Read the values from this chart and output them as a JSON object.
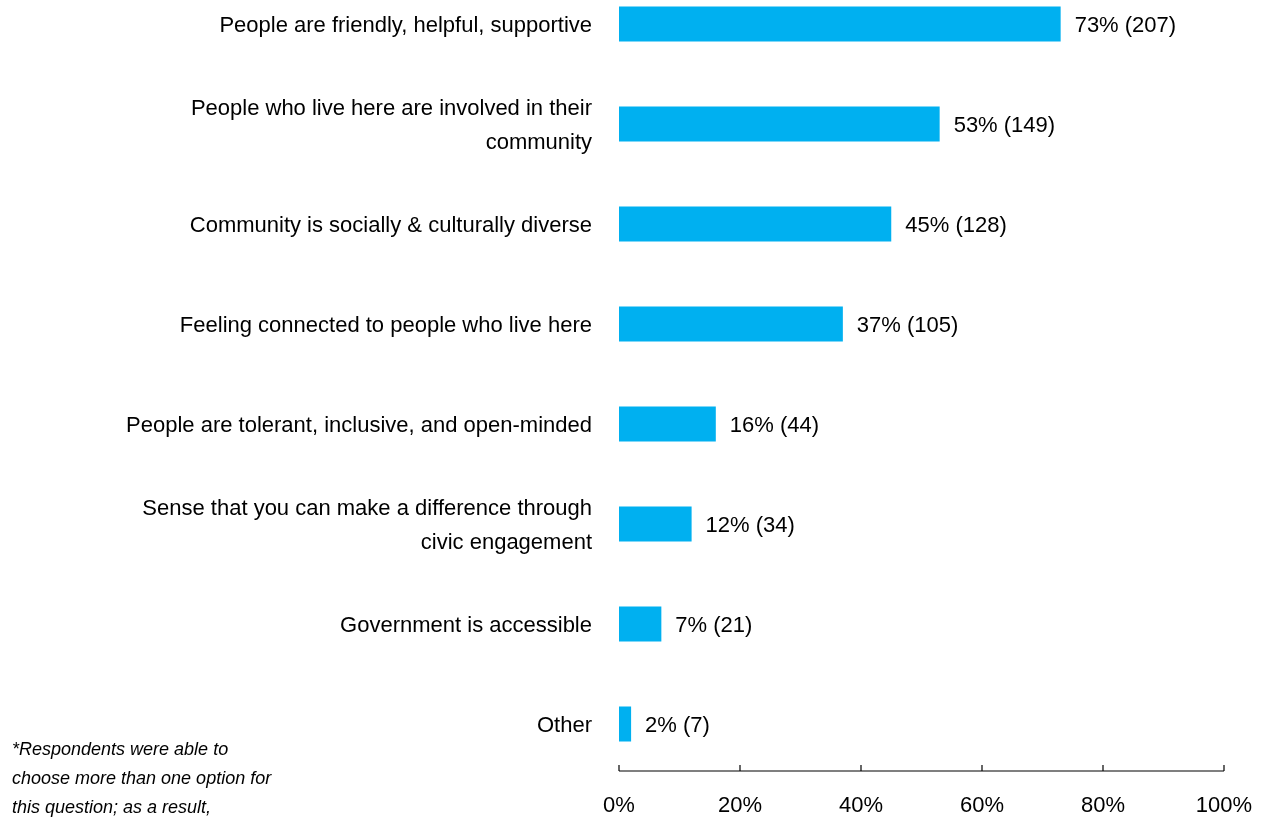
{
  "chart_data": {
    "type": "bar",
    "orientation": "horizontal",
    "categories": [
      "People are friendly, helpful, supportive",
      "People who live here are involved in their community",
      "Community is socially & culturally diverse",
      "Feeling connected to people who live here",
      "People are tolerant, inclusive, and open-minded",
      "Sense that you can make a difference through civic engagement",
      "Government is accessible",
      "Other"
    ],
    "values": [
      73,
      53,
      45,
      37,
      16,
      12,
      7,
      2
    ],
    "value_labels": [
      "73% (207)",
      "53% (149)",
      "45% (128)",
      "37% (105)",
      "16% (44)",
      "12% (34)",
      "7% (21)",
      "2% (7)"
    ],
    "color": "#00b0f0",
    "xlim": [
      0,
      100
    ],
    "xticks": [
      {
        "value": 0,
        "label": "0%"
      },
      {
        "value": 20,
        "label": "20%"
      },
      {
        "value": 40,
        "label": "40%"
      },
      {
        "value": 60,
        "label": "60%"
      },
      {
        "value": 80,
        "label": "80%"
      },
      {
        "value": 100,
        "label": "100%"
      }
    ],
    "grid": false,
    "annotations": [
      "*Respondents were able to choose more than one option for this question; as a result,"
    ]
  }
}
